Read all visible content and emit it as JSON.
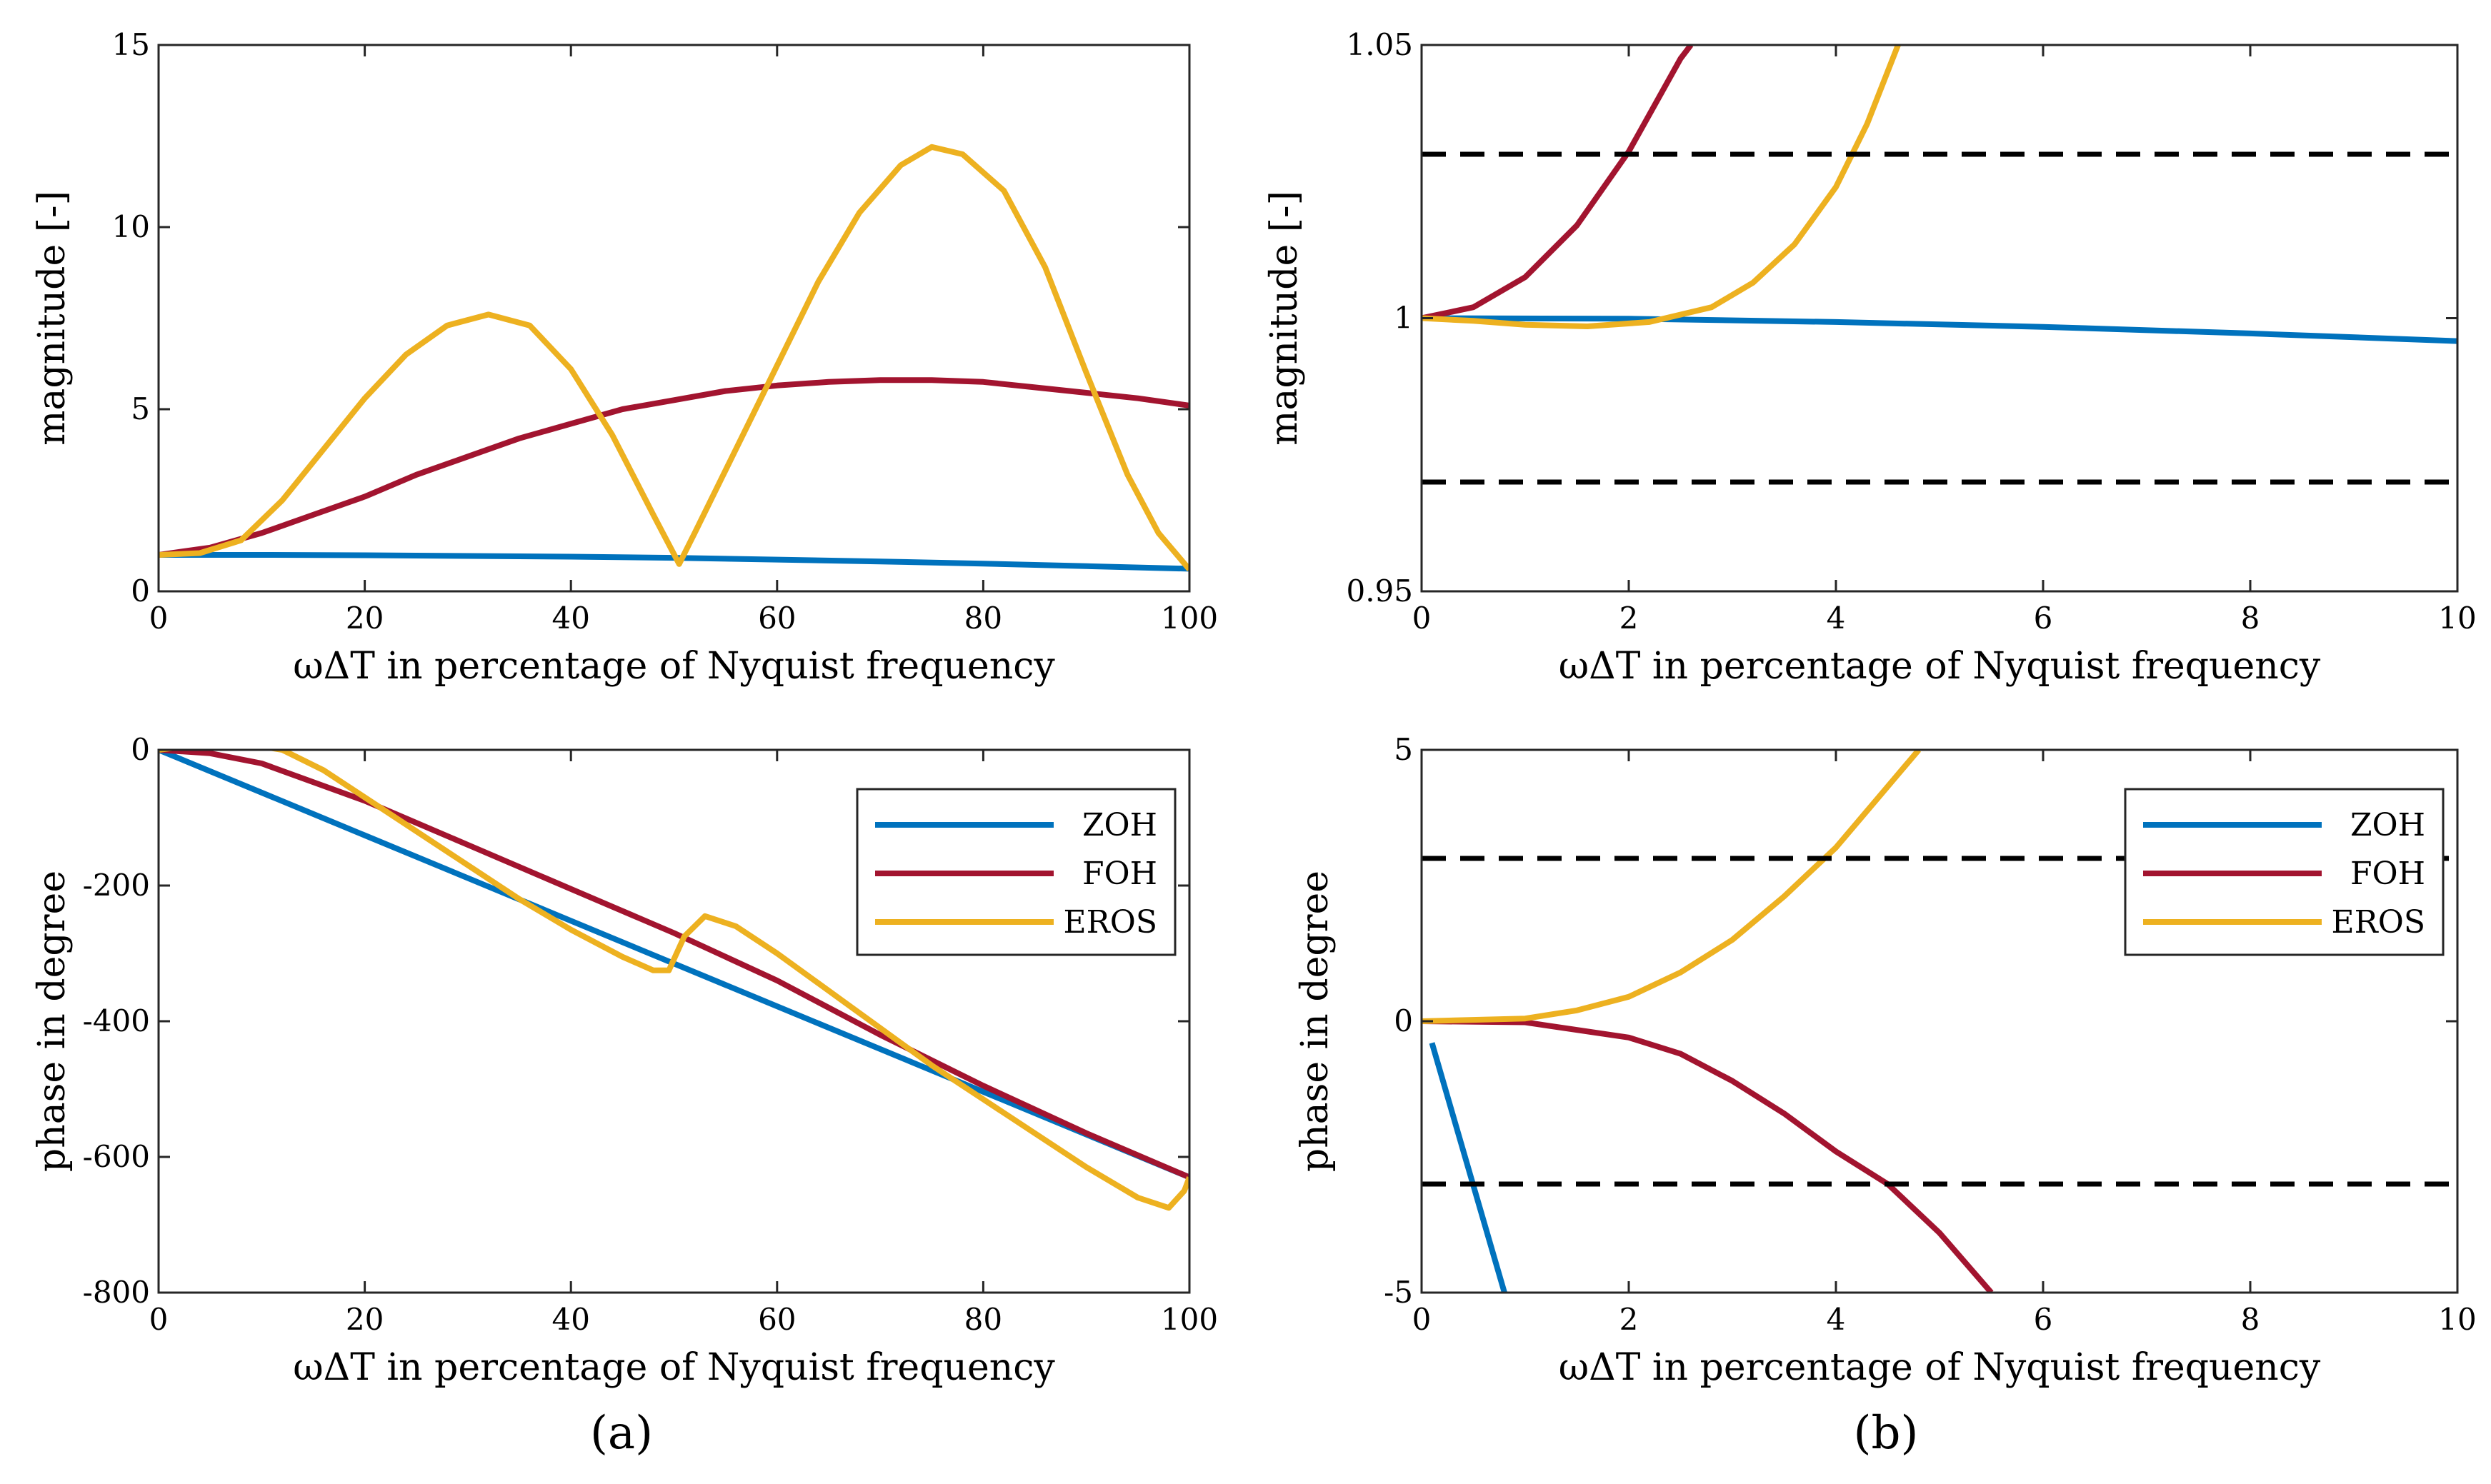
{
  "colors": {
    "ZOH": "#0072BD",
    "FOH": "#A2142F",
    "EROS": "#EDB120",
    "tolerance": "#000000"
  },
  "panel_labels": {
    "a": "(a)",
    "b": "(b)"
  },
  "legend_entries": [
    "ZOH",
    "FOH",
    "EROS"
  ],
  "chart_data": [
    {
      "type": "line",
      "id": "a-magnitude",
      "title": "",
      "xlabel": "ωΔT  in percentage of Nyquist frequency",
      "ylabel": "magnitude [-]",
      "xlim": [
        0,
        100
      ],
      "ylim": [
        0,
        15
      ],
      "xticks": [
        "0",
        "20",
        "40",
        "60",
        "80",
        "100"
      ],
      "yticks": [
        "0",
        "5",
        "10",
        "15"
      ],
      "grid": false,
      "legend": null,
      "series": [
        {
          "name": "ZOH",
          "x": [
            0,
            10,
            20,
            30,
            40,
            50,
            60,
            70,
            80,
            90,
            100
          ],
          "y": [
            1.0,
            1.0,
            0.99,
            0.97,
            0.95,
            0.92,
            0.87,
            0.82,
            0.76,
            0.69,
            0.62
          ]
        },
        {
          "name": "FOH",
          "x": [
            0,
            5,
            10,
            15,
            20,
            25,
            30,
            35,
            40,
            45,
            50,
            55,
            60,
            65,
            70,
            75,
            80,
            85,
            90,
            95,
            100
          ],
          "y": [
            1.0,
            1.2,
            1.6,
            2.1,
            2.6,
            3.2,
            3.7,
            4.2,
            4.6,
            5.0,
            5.25,
            5.5,
            5.65,
            5.75,
            5.8,
            5.8,
            5.75,
            5.6,
            5.45,
            5.3,
            5.1
          ]
        },
        {
          "name": "EROS",
          "x": [
            0,
            4,
            8,
            12,
            16,
            20,
            24,
            28,
            32,
            36,
            40,
            44,
            48,
            50.5,
            52,
            56,
            60,
            64,
            68,
            72,
            75,
            78,
            82,
            86,
            90,
            94,
            97,
            100
          ],
          "y": [
            1.0,
            1.05,
            1.4,
            2.5,
            3.9,
            5.3,
            6.5,
            7.3,
            7.6,
            7.3,
            6.1,
            4.3,
            2.1,
            0.75,
            1.6,
            3.9,
            6.2,
            8.5,
            10.4,
            11.7,
            12.2,
            12.0,
            11.0,
            8.9,
            6.0,
            3.2,
            1.6,
            0.6
          ]
        }
      ]
    },
    {
      "type": "line",
      "id": "b-magnitude",
      "title": "",
      "xlabel": "ωΔT  in percentage of Nyquist frequency",
      "ylabel": "magnitude [-]",
      "xlim": [
        0,
        10
      ],
      "ylim": [
        0.95,
        1.05
      ],
      "xticks": [
        "0",
        "2",
        "4",
        "6",
        "8",
        "10"
      ],
      "yticks": [
        "0.95",
        "1",
        "1.05"
      ],
      "grid": false,
      "legend": null,
      "series": [
        {
          "name": "ZOH",
          "x": [
            0,
            2,
            4,
            6,
            8,
            10
          ],
          "y": [
            1.0,
            0.9999,
            0.9993,
            0.9984,
            0.9972,
            0.9958
          ]
        },
        {
          "name": "FOH",
          "x": [
            0,
            0.5,
            1.0,
            1.5,
            2.0,
            2.5,
            2.6
          ],
          "y": [
            1.0,
            1.002,
            1.0075,
            1.017,
            1.0305,
            1.0475,
            1.05
          ]
        },
        {
          "name": "EROS",
          "x": [
            0,
            0.5,
            1.0,
            1.6,
            2.2,
            2.8,
            3.2,
            3.6,
            4.0,
            4.3,
            4.6
          ],
          "y": [
            1.0,
            0.9995,
            0.9988,
            0.9985,
            0.9993,
            1.002,
            1.0065,
            1.0135,
            1.024,
            1.0355,
            1.05
          ]
        },
        {
          "name": "tolerance",
          "style": "dashed",
          "x": [
            0,
            10
          ],
          "y": [
            1.03,
            1.03
          ]
        },
        {
          "name": "tolerance",
          "style": "dashed",
          "x": [
            0,
            10
          ],
          "y": [
            0.97,
            0.97
          ]
        }
      ]
    },
    {
      "type": "line",
      "id": "a-phase",
      "title": "",
      "xlabel": "ωΔT  in percentage of Nyquist frequency",
      "ylabel": "phase in degree",
      "xlim": [
        0,
        100
      ],
      "ylim": [
        -800,
        0
      ],
      "xticks": [
        "0",
        "20",
        "40",
        "60",
        "80",
        "100"
      ],
      "yticks": [
        "-800",
        "-600",
        "-400",
        "-200",
        "0"
      ],
      "grid": false,
      "legend": "top-right",
      "series": [
        {
          "name": "ZOH",
          "x": [
            0,
            100
          ],
          "y": [
            0,
            -630
          ]
        },
        {
          "name": "FOH",
          "x": [
            0,
            5,
            10,
            20,
            30,
            40,
            50,
            60,
            70,
            80,
            90,
            100
          ],
          "y": [
            0,
            -5,
            -20,
            -75,
            -140,
            -205,
            -270,
            -340,
            -420,
            -495,
            -565,
            -630
          ]
        },
        {
          "name": "EROS",
          "x": [
            0,
            4,
            8,
            12,
            16,
            20,
            25,
            30,
            35,
            40,
            45,
            48,
            49.5,
            51,
            53,
            56,
            60,
            65,
            70,
            75,
            80,
            85,
            90,
            95,
            98,
            99.5,
            100
          ],
          "y": [
            0,
            8,
            10,
            0,
            -30,
            -70,
            -120,
            -170,
            -220,
            -265,
            -305,
            -325,
            -325,
            -275,
            -245,
            -260,
            -300,
            -355,
            -410,
            -465,
            -515,
            -565,
            -615,
            -660,
            -675,
            -650,
            -630
          ]
        }
      ]
    },
    {
      "type": "line",
      "id": "b-phase",
      "title": "",
      "xlabel": "ωΔT  in percentage of Nyquist frequency",
      "ylabel": "phase in degree",
      "xlim": [
        0,
        10
      ],
      "ylim": [
        -5,
        5
      ],
      "xticks": [
        "0",
        "2",
        "4",
        "6",
        "8",
        "10"
      ],
      "yticks": [
        "-5",
        "0",
        "5"
      ],
      "grid": false,
      "legend": "top-right",
      "series": [
        {
          "name": "ZOH",
          "x": [
            0.1,
            0.8
          ],
          "y": [
            -0.4,
            -5.0
          ]
        },
        {
          "name": "FOH",
          "x": [
            0,
            1,
            2,
            2.5,
            3,
            3.5,
            4,
            4.5,
            5,
            5.5
          ],
          "y": [
            0,
            -0.02,
            -0.3,
            -0.6,
            -1.1,
            -1.7,
            -2.4,
            -3.0,
            -3.9,
            -5.0
          ]
        },
        {
          "name": "EROS",
          "x": [
            0,
            1,
            1.5,
            2,
            2.5,
            3,
            3.5,
            4,
            4.4,
            4.8
          ],
          "y": [
            0,
            0.05,
            0.2,
            0.45,
            0.9,
            1.5,
            2.3,
            3.2,
            4.1,
            5.0
          ]
        },
        {
          "name": "tolerance",
          "style": "dashed",
          "x": [
            0,
            10
          ],
          "y": [
            3,
            3
          ]
        },
        {
          "name": "tolerance",
          "style": "dashed",
          "x": [
            0,
            10
          ],
          "y": [
            -3,
            -3
          ]
        }
      ]
    }
  ]
}
